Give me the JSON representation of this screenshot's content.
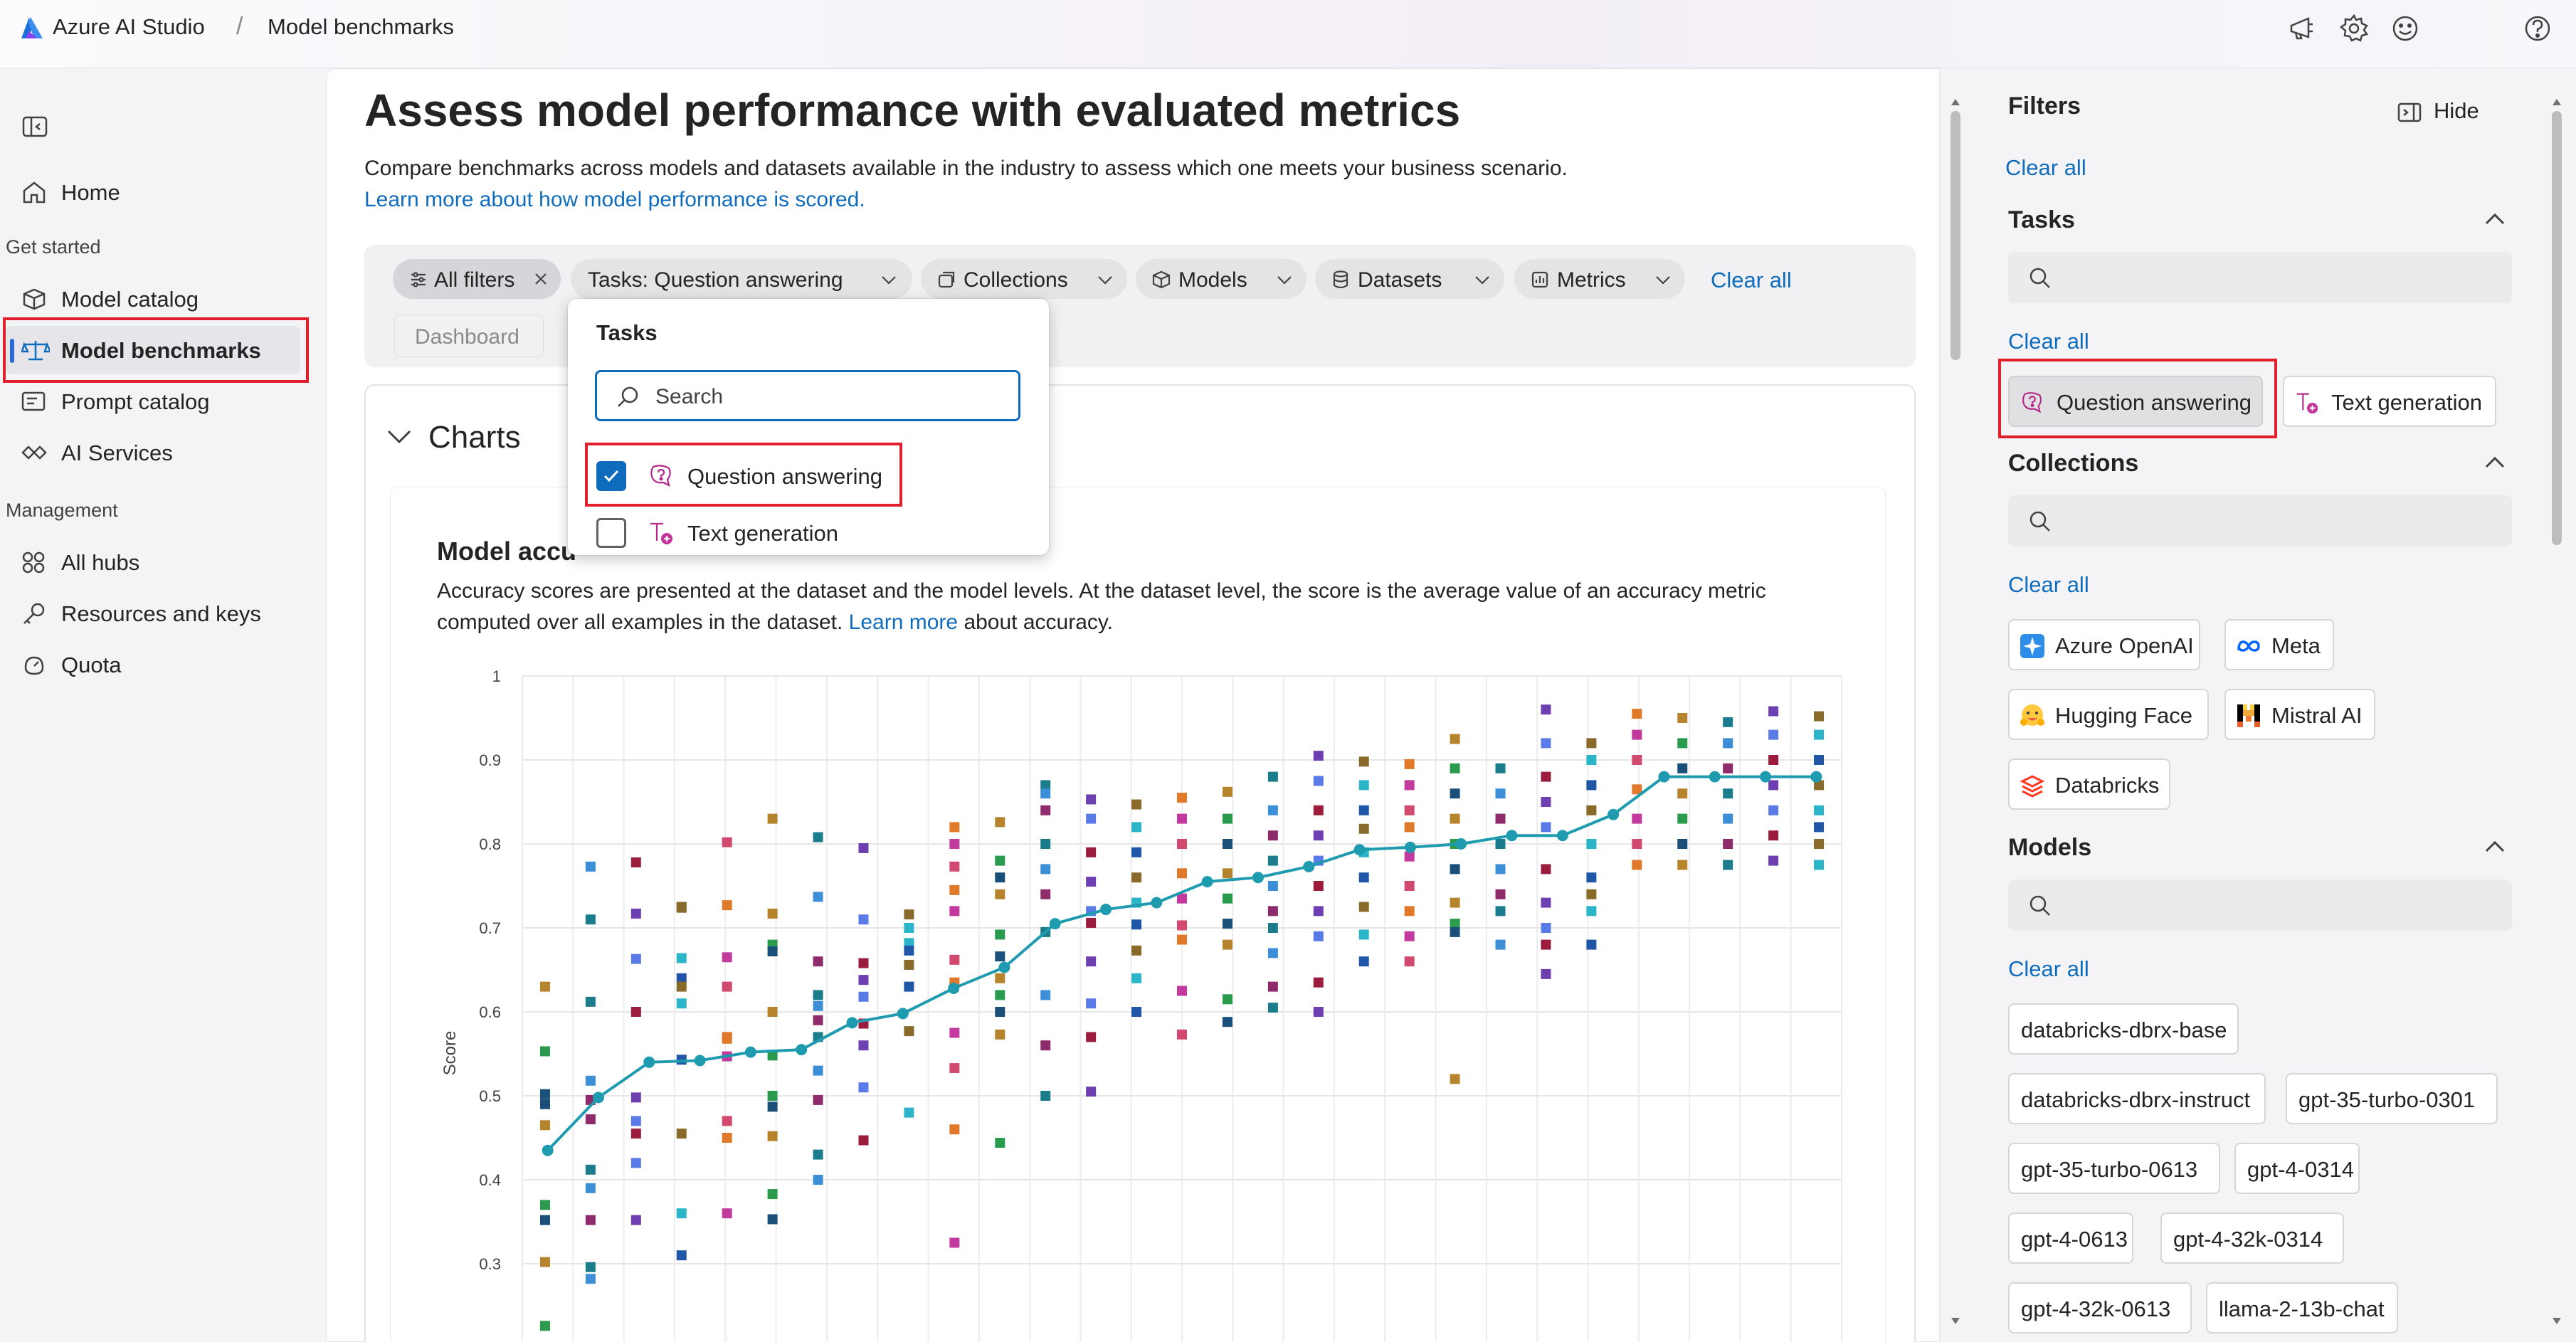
{
  "header": {
    "brand": "Azure AI Studio",
    "separator": "/",
    "breadcrumb": "Model benchmarks",
    "icons": [
      "megaphone-icon",
      "gear-icon",
      "smiley-icon",
      "help-icon"
    ]
  },
  "sidebar": {
    "toggle_icon": "panel-toggle-icon",
    "home": "Home",
    "sections": [
      {
        "title": "Get started",
        "items": [
          "Model catalog",
          "Model benchmarks",
          "Prompt catalog",
          "AI Services"
        ]
      },
      {
        "title": "Management",
        "items": [
          "All hubs",
          "Resources and keys",
          "Quota"
        ]
      }
    ],
    "active_item": "Model benchmarks"
  },
  "main": {
    "title": "Assess model performance with evaluated metrics",
    "description": "Compare benchmarks across models and datasets available in the industry to assess which one meets your business scenario.",
    "learn_more": "Learn more about how model performance is scored.",
    "filters": {
      "all_filters": "All filters",
      "tasks": "Tasks: Question answering",
      "collections": "Collections",
      "models": "Models",
      "datasets": "Datasets",
      "metrics": "Metrics",
      "clear_all": "Clear all"
    },
    "tab_dashboard": "Dashboard",
    "charts_heading": "Charts",
    "chart_title": "Model accu",
    "chart_desc_line1": "Accuracy scores are presented at the dataset and the model levels. At the dataset level, the score is the average value of an accuracy metric",
    "chart_desc_line2_pre": "computed over all examples in the dataset.",
    "chart_desc_link": "Learn more",
    "chart_desc_line2_post": "about accuracy."
  },
  "dropdown": {
    "title": "Tasks",
    "search_placeholder": "Search",
    "options": [
      {
        "label": "Question answering",
        "checked": true
      },
      {
        "label": "Text generation",
        "checked": false
      }
    ]
  },
  "filters_panel": {
    "title": "Filters",
    "hide": "Hide",
    "clear_all": "Clear all",
    "tasks": {
      "title": "Tasks",
      "clear_all": "Clear all",
      "options": [
        {
          "label": "Question answering",
          "selected": true
        },
        {
          "label": "Text generation",
          "selected": false
        }
      ]
    },
    "collections": {
      "title": "Collections",
      "clear_all": "Clear all",
      "options": [
        "Azure OpenAI",
        "Meta",
        "Hugging Face",
        "Mistral AI",
        "Databricks"
      ]
    },
    "models": {
      "title": "Models",
      "clear_all": "Clear all",
      "options": [
        "databricks-dbrx-base",
        "databricks-dbrx-instruct",
        "gpt-35-turbo-0301",
        "gpt-35-turbo-0613",
        "gpt-4-0314",
        "gpt-4-0613",
        "gpt-4-32k-0314",
        "gpt-4-32k-0613",
        "llama-2-13b-chat"
      ]
    }
  },
  "colors": {
    "accent": "#0f6cbd",
    "line": "#1f9bb0",
    "highlight": "#e2202d"
  },
  "chart_data": {
    "type": "scatter",
    "title": "",
    "xlabel": "",
    "ylabel": "Score",
    "ylim": [
      0.2,
      1
    ],
    "yticks": [
      "1",
      "0.9",
      "0.8",
      "0.7",
      "0.6",
      "0.5",
      "0.4",
      "0.3"
    ],
    "grid": true,
    "series": [
      {
        "type": "line",
        "values": [
          0.435,
          0.498,
          0.54,
          0.542,
          0.552,
          0.555,
          0.587,
          0.598,
          0.628,
          0.653,
          0.705,
          0.722,
          0.73,
          0.755,
          0.76,
          0.773,
          0.793,
          0.796,
          0.8,
          0.81,
          0.81,
          0.835,
          0.88,
          0.88,
          0.88,
          0.88
        ]
      },
      {
        "type": "points",
        "values": [
          [
            0.63,
            0.553,
            0.502,
            0.465,
            0.37,
            0.352,
            0.302,
            0.226,
            0.49
          ],
          [
            0.612,
            0.518,
            0.472,
            0.412,
            0.39,
            0.352,
            0.296,
            0.282,
            0.495,
            0.71,
            0.773
          ],
          [
            0.717,
            0.663,
            0.6,
            0.498,
            0.47,
            0.455,
            0.352,
            0.42,
            0.778
          ],
          [
            0.725,
            0.664,
            0.64,
            0.63,
            0.61,
            0.543,
            0.455,
            0.36,
            0.31,
            0.724
          ],
          [
            0.727,
            0.665,
            0.63,
            0.57,
            0.547,
            0.47,
            0.45,
            0.36,
            0.802,
            0.568
          ],
          [
            0.717,
            0.68,
            0.672,
            0.6,
            0.548,
            0.487,
            0.452,
            0.383,
            0.353,
            0.83,
            0.5
          ],
          [
            0.808,
            0.737,
            0.66,
            0.62,
            0.607,
            0.59,
            0.57,
            0.53,
            0.495,
            0.43,
            0.4
          ],
          [
            0.795,
            0.71,
            0.658,
            0.638,
            0.618,
            0.586,
            0.56,
            0.51,
            0.447
          ],
          [
            0.716,
            0.682,
            0.673,
            0.656,
            0.7,
            0.63,
            0.577,
            0.48
          ],
          [
            0.82,
            0.8,
            0.773,
            0.745,
            0.72,
            0.662,
            0.635,
            0.575,
            0.533,
            0.46,
            0.325
          ],
          [
            0.826,
            0.78,
            0.76,
            0.74,
            0.692,
            0.666,
            0.64,
            0.62,
            0.6,
            0.573,
            0.444
          ],
          [
            0.87,
            0.86,
            0.84,
            0.8,
            0.77,
            0.74,
            0.695,
            0.62,
            0.56,
            0.5
          ],
          [
            0.853,
            0.83,
            0.79,
            0.755,
            0.72,
            0.706,
            0.66,
            0.61,
            0.57,
            0.505
          ],
          [
            0.847,
            0.82,
            0.79,
            0.76,
            0.73,
            0.704,
            0.673,
            0.64,
            0.6
          ],
          [
            0.855,
            0.83,
            0.8,
            0.765,
            0.735,
            0.703,
            0.686,
            0.625,
            0.573
          ],
          [
            0.862,
            0.83,
            0.8,
            0.765,
            0.735,
            0.705,
            0.68,
            0.615,
            0.588
          ],
          [
            0.88,
            0.84,
            0.81,
            0.78,
            0.75,
            0.72,
            0.7,
            0.67,
            0.63,
            0.605
          ],
          [
            0.905,
            0.875,
            0.84,
            0.81,
            0.78,
            0.75,
            0.72,
            0.69,
            0.635,
            0.6
          ],
          [
            0.898,
            0.87,
            0.84,
            0.818,
            0.79,
            0.76,
            0.725,
            0.692,
            0.66
          ],
          [
            0.895,
            0.87,
            0.84,
            0.82,
            0.785,
            0.75,
            0.72,
            0.69,
            0.66
          ],
          [
            0.925,
            0.89,
            0.86,
            0.83,
            0.8,
            0.77,
            0.73,
            0.705,
            0.695,
            0.52
          ],
          [
            0.89,
            0.86,
            0.83,
            0.8,
            0.77,
            0.74,
            0.72,
            0.68
          ],
          [
            0.96,
            0.92,
            0.88,
            0.85,
            0.82,
            0.77,
            0.73,
            0.7,
            0.68,
            0.645
          ],
          [
            0.92,
            0.9,
            0.87,
            0.84,
            0.8,
            0.76,
            0.74,
            0.72,
            0.68
          ],
          [
            0.955,
            0.93,
            0.9,
            0.865,
            0.83,
            0.8,
            0.775
          ],
          [
            0.95,
            0.92,
            0.89,
            0.86,
            0.83,
            0.8,
            0.775
          ],
          [
            0.945,
            0.92,
            0.89,
            0.86,
            0.83,
            0.8,
            0.775
          ],
          [
            0.958,
            0.93,
            0.9,
            0.87,
            0.84,
            0.81,
            0.78
          ],
          [
            0.952,
            0.93,
            0.9,
            0.87,
            0.84,
            0.82,
            0.8,
            0.775
          ]
        ]
      }
    ]
  }
}
